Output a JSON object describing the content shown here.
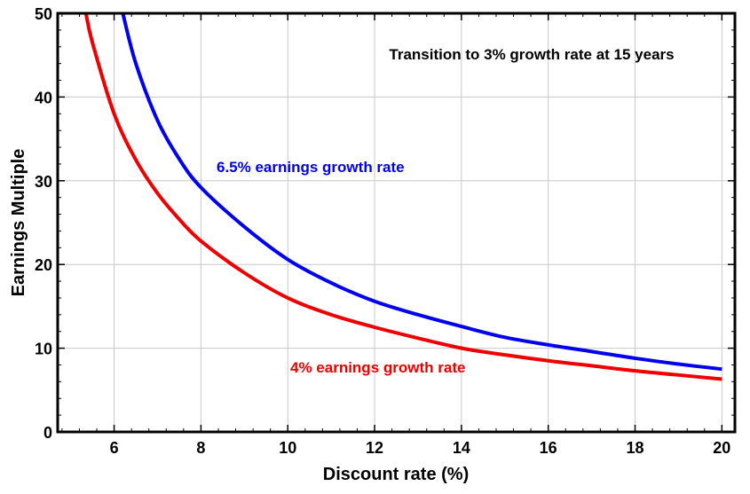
{
  "chart_data": {
    "type": "line",
    "title": "",
    "xlabel": "Discount rate (%)",
    "ylabel": "Earnings Multiple",
    "xlim": [
      4.7,
      20.3
    ],
    "ylim": [
      0,
      50
    ],
    "x_ticks": [
      6,
      8,
      10,
      12,
      14,
      16,
      18,
      20
    ],
    "y_ticks": [
      0,
      10,
      20,
      30,
      40,
      50
    ],
    "grid": true,
    "legend": "none",
    "annotations": [
      {
        "text": "Transition to 3% growth rate at 15 years",
        "color": "#000000"
      },
      {
        "text": "6.5% earnings growth rate",
        "color": "#0000ee"
      },
      {
        "text": "4% earnings growth rate",
        "color": "#ee0000"
      }
    ],
    "series": [
      {
        "color": "#0000ee",
        "x": [
          6.2,
          6.5,
          7,
          7.5,
          8,
          9,
          10,
          11,
          12,
          13,
          14,
          15,
          16,
          17,
          18,
          19,
          20
        ],
        "y": [
          50,
          44,
          37.2,
          32.6,
          29.2,
          24.5,
          20.6,
          17.8,
          15.6,
          14,
          12.6,
          11.3,
          10.4,
          9.6,
          8.8,
          8.1,
          7.5
        ]
      },
      {
        "color": "#ee0000",
        "x": [
          5.35,
          5.5,
          6,
          6.5,
          7,
          7.5,
          8,
          9,
          10,
          11,
          12,
          13,
          14,
          15,
          16,
          17,
          18,
          19,
          20
        ],
        "y": [
          50,
          46.5,
          38,
          32.5,
          28.5,
          25.4,
          22.8,
          19,
          16,
          14,
          12.5,
          11.2,
          10,
          9.2,
          8.5,
          7.9,
          7.3,
          6.8,
          6.3
        ]
      }
    ]
  }
}
